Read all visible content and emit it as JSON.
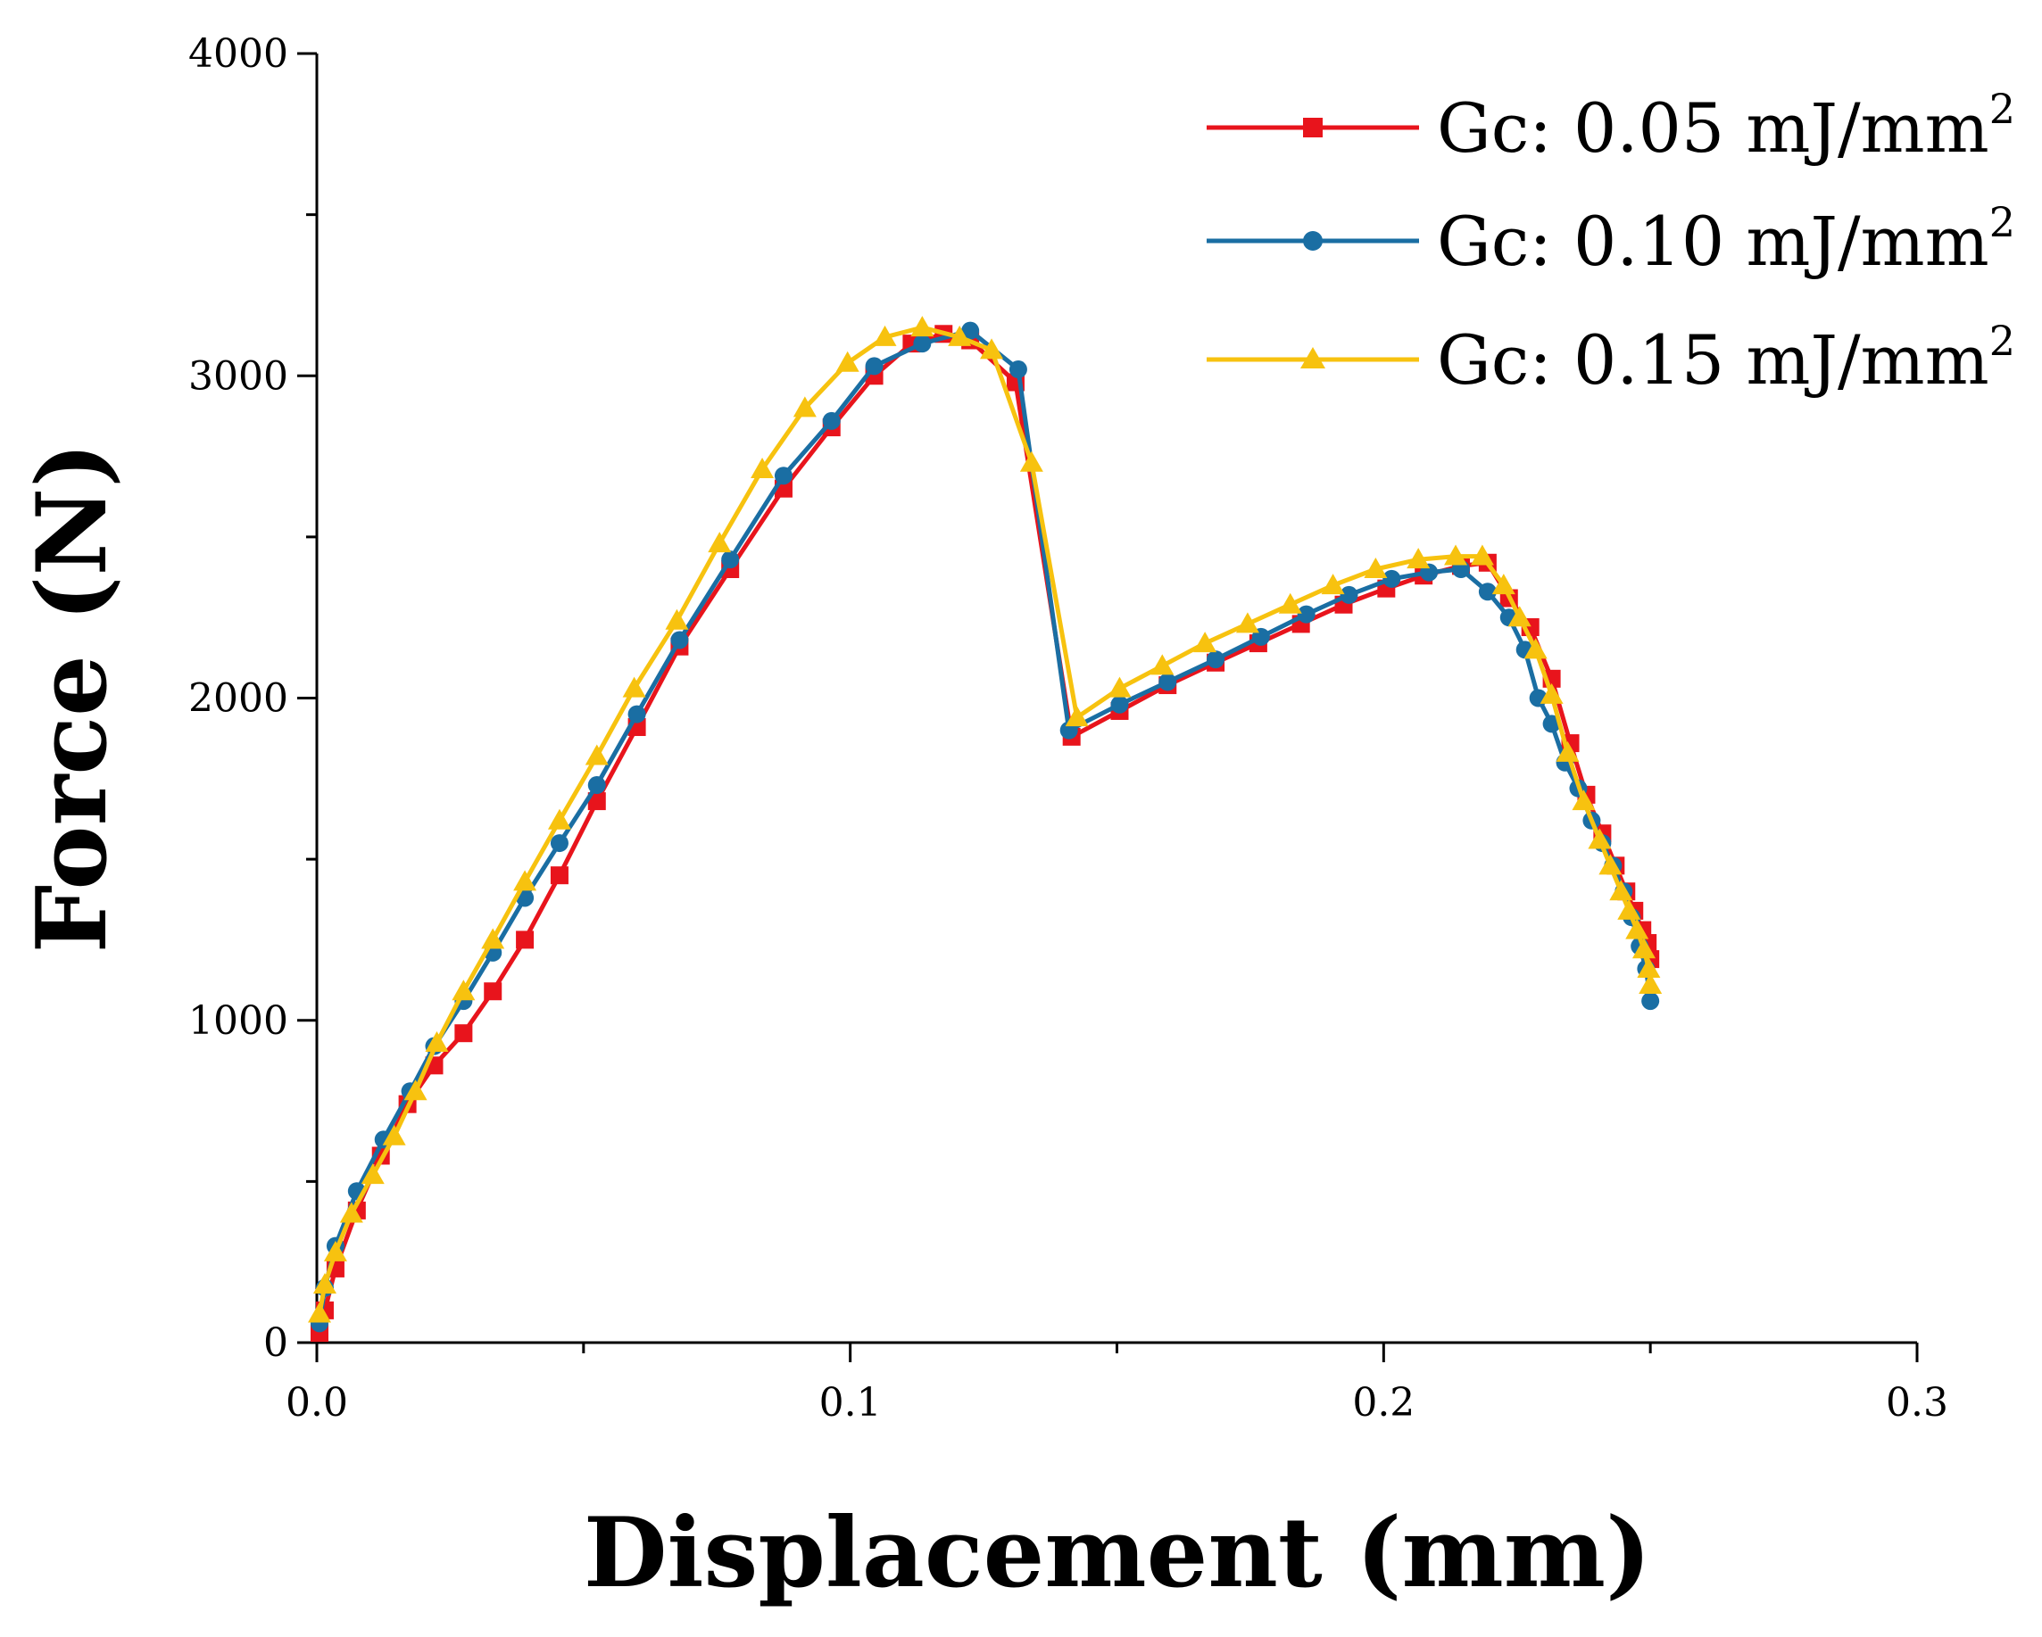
{
  "chart_data": {
    "type": "line",
    "title": "",
    "xlabel": "Displacement (mm)",
    "ylabel": "Force (N)",
    "xlim": [
      0,
      0.3
    ],
    "ylim": [
      0,
      4000
    ],
    "xticks": [
      0.0,
      0.1,
      0.2,
      0.3
    ],
    "xtick_labels": [
      "0.0",
      "0.1",
      "0.2",
      "0.3"
    ],
    "yticks": [
      0,
      1000,
      2000,
      3000,
      4000
    ],
    "ytick_labels": [
      "0",
      "1000",
      "2000",
      "3000",
      "4000"
    ],
    "legend_position": "top-right",
    "series": [
      {
        "name": "Gc: 0.05 mJ/mm",
        "name_sup": "2",
        "color": "#e8141c",
        "marker": "square",
        "x": [
          0.0005,
          0.0015,
          0.0035,
          0.0075,
          0.012,
          0.017,
          0.022,
          0.0275,
          0.033,
          0.039,
          0.0455,
          0.0525,
          0.06,
          0.068,
          0.0775,
          0.0875,
          0.0965,
          0.1045,
          0.1115,
          0.1175,
          0.1225,
          0.131,
          0.1415,
          0.1505,
          0.1595,
          0.1685,
          0.1765,
          0.1845,
          0.1925,
          0.2005,
          0.2075,
          0.2145,
          0.2195,
          0.2235,
          0.2275,
          0.2315,
          0.235,
          0.238,
          0.241,
          0.2435,
          0.2455,
          0.247,
          0.2485,
          0.2495,
          0.25
        ],
        "y": [
          30,
          100,
          230,
          410,
          580,
          740,
          860,
          960,
          1090,
          1250,
          1450,
          1680,
          1910,
          2160,
          2400,
          2650,
          2840,
          3000,
          3100,
          3130,
          3110,
          2980,
          1880,
          1960,
          2040,
          2110,
          2170,
          2230,
          2290,
          2340,
          2380,
          2410,
          2420,
          2310,
          2220,
          2060,
          1860,
          1700,
          1580,
          1480,
          1400,
          1340,
          1280,
          1240,
          1190
        ]
      },
      {
        "name": "Gc: 0.10 mJ/mm",
        "name_sup": "2",
        "color": "#1a6ea3",
        "marker": "circle",
        "x": [
          0.0005,
          0.0015,
          0.0035,
          0.0075,
          0.0125,
          0.0175,
          0.022,
          0.0275,
          0.033,
          0.039,
          0.0455,
          0.0525,
          0.06,
          0.068,
          0.0775,
          0.0875,
          0.0965,
          0.1045,
          0.1135,
          0.1225,
          0.1315,
          0.141,
          0.1505,
          0.1595,
          0.1685,
          0.177,
          0.1855,
          0.1935,
          0.2015,
          0.2085,
          0.2145,
          0.2195,
          0.2235,
          0.2265,
          0.229,
          0.2315,
          0.234,
          0.2365,
          0.239,
          0.241,
          0.243,
          0.245,
          0.2465,
          0.248,
          0.2492,
          0.25
        ],
        "y": [
          60,
          170,
          300,
          470,
          630,
          780,
          920,
          1060,
          1210,
          1380,
          1550,
          1730,
          1950,
          2180,
          2430,
          2690,
          2860,
          3030,
          3100,
          3140,
          3020,
          1900,
          1980,
          2050,
          2120,
          2190,
          2260,
          2320,
          2370,
          2390,
          2400,
          2330,
          2250,
          2150,
          2000,
          1920,
          1800,
          1720,
          1620,
          1550,
          1480,
          1400,
          1320,
          1230,
          1160,
          1060
        ]
      },
      {
        "name": "Gc: 0.15 mJ/mm",
        "name_sup": "2",
        "color": "#f7c20f",
        "marker": "triangle",
        "x": [
          0.0005,
          0.0015,
          0.0035,
          0.0065,
          0.0105,
          0.0145,
          0.0185,
          0.0225,
          0.0275,
          0.033,
          0.039,
          0.0455,
          0.0525,
          0.0595,
          0.0675,
          0.0755,
          0.0835,
          0.0915,
          0.0995,
          0.1065,
          0.1135,
          0.1205,
          0.1265,
          0.134,
          0.1425,
          0.1505,
          0.1585,
          0.1665,
          0.1745,
          0.1825,
          0.1905,
          0.1985,
          0.2065,
          0.2135,
          0.2185,
          0.2225,
          0.2255,
          0.2285,
          0.2315,
          0.2345,
          0.2375,
          0.2405,
          0.2425,
          0.2445,
          0.246,
          0.2475,
          0.2488,
          0.2497,
          0.25
        ],
        "y": [
          90,
          180,
          280,
          400,
          520,
          640,
          780,
          930,
          1090,
          1250,
          1430,
          1620,
          1820,
          2030,
          2240,
          2480,
          2710,
          2900,
          3040,
          3120,
          3150,
          3120,
          3080,
          2730,
          1940,
          2030,
          2100,
          2170,
          2230,
          2290,
          2350,
          2400,
          2430,
          2440,
          2440,
          2350,
          2250,
          2150,
          2010,
          1830,
          1680,
          1560,
          1480,
          1400,
          1340,
          1280,
          1220,
          1160,
          1110
        ]
      }
    ]
  }
}
